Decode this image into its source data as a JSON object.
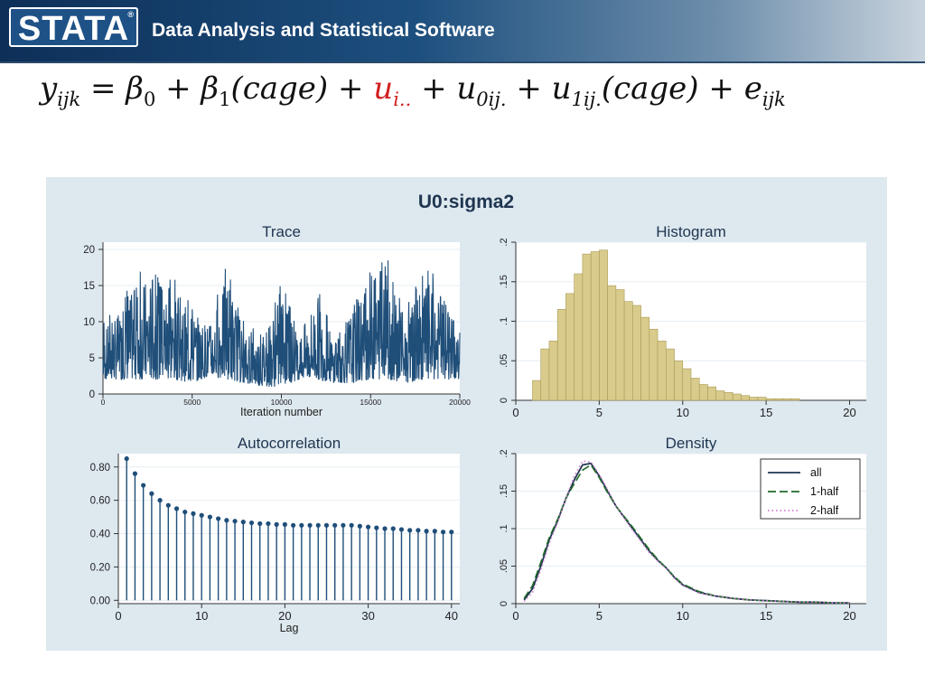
{
  "header": {
    "logo_text": "STATA",
    "logo_mark": "®",
    "tagline": "Data Analysis and Statistical Software"
  },
  "equation": {
    "lhs": "y",
    "lhs_sub": "ijk",
    "equals": " = ",
    "b0": "β",
    "b0_sub": "0",
    "plus1": " + ",
    "b1": "β",
    "b1_sub": "1",
    "cage1": "(cage)",
    "plus2": " + ",
    "u_red": "u",
    "u_red_sub": "i..",
    "plus3": " + ",
    "u0": "u",
    "u0_sub": "0ij.",
    "plus4": " + ",
    "u1": "u",
    "u1_sub": "1ij.",
    "cage2": "(cage)",
    "plus5": " + ",
    "e": "e",
    "e_sub": "ijk"
  },
  "figure_title": "U0:sigma2",
  "colors": {
    "navy": "#1f4e79",
    "olive_fill": "#d9cb8c",
    "olive_edge": "#a89a55",
    "panel_bg": "#dde8ef",
    "green": "#1f6b2a",
    "pink": "#d17bd3"
  },
  "chart_data": [
    {
      "type": "line",
      "title": "Trace",
      "xlabel": "Iteration number",
      "ylabel": "",
      "xlim": [
        0,
        20000
      ],
      "ylim": [
        0,
        21
      ],
      "xticks": [
        "0",
        "5000",
        "10000",
        "15000",
        "20000"
      ],
      "yticks": [
        "0",
        "5",
        "10",
        "15",
        "20"
      ],
      "series": [
        {
          "n_points": 20000,
          "mean_level": 5,
          "min_level": 1,
          "max_level": 20,
          "envelope_x": [
            0,
            1000,
            2000,
            3000,
            4000,
            5000,
            6000,
            7000,
            8000,
            9000,
            10000,
            11000,
            12000,
            13000,
            14000,
            15000,
            16000,
            17000,
            18000,
            19000,
            20000
          ],
          "envelope_low": [
            2,
            2,
            2,
            2,
            2,
            1.5,
            2.5,
            2,
            1.5,
            1,
            1,
            2,
            2,
            1.5,
            1.5,
            2,
            2,
            1.5,
            2,
            2,
            2
          ],
          "envelope_high": [
            10,
            13,
            18,
            19,
            16,
            13,
            11,
            19,
            9,
            10,
            16,
            9,
            16,
            8,
            14,
            20,
            19,
            12,
            18,
            16,
            10
          ]
        }
      ]
    },
    {
      "type": "bar",
      "title": "Histogram",
      "xlabel": "",
      "ylabel": "",
      "xlim": [
        0,
        21
      ],
      "ylim": [
        0,
        0.2
      ],
      "xticks": [
        "0",
        "5",
        "10",
        "15",
        "20"
      ],
      "yticks": [
        "0",
        ".05",
        ".1",
        ".15",
        ".2"
      ],
      "bin_width": 0.5,
      "bin_starts": [
        1.0,
        1.5,
        2.0,
        2.5,
        3.0,
        3.5,
        4.0,
        4.5,
        5.0,
        5.5,
        6.0,
        6.5,
        7.0,
        7.5,
        8.0,
        8.5,
        9.0,
        9.5,
        10.0,
        10.5,
        11.0,
        11.5,
        12.0,
        12.5,
        13.0,
        13.5,
        14.0,
        14.5,
        15.0,
        15.5,
        16.0,
        16.5
      ],
      "values": [
        0.025,
        0.065,
        0.075,
        0.115,
        0.135,
        0.16,
        0.185,
        0.188,
        0.19,
        0.145,
        0.14,
        0.125,
        0.12,
        0.105,
        0.09,
        0.075,
        0.065,
        0.05,
        0.04,
        0.028,
        0.02,
        0.017,
        0.012,
        0.01,
        0.008,
        0.006,
        0.004,
        0.004,
        0.002,
        0.002,
        0.002,
        0.002
      ]
    },
    {
      "type": "bar",
      "subtype": "stem",
      "title": "Autocorrelation",
      "xlabel": "Lag",
      "ylabel": "",
      "xlim": [
        0,
        41
      ],
      "ylim": [
        -0.02,
        0.88
      ],
      "xticks": [
        "0",
        "10",
        "20",
        "30",
        "40"
      ],
      "yticks": [
        "0.00",
        "0.20",
        "0.40",
        "0.60",
        "0.80"
      ],
      "x": [
        1,
        2,
        3,
        4,
        5,
        6,
        7,
        8,
        9,
        10,
        11,
        12,
        13,
        14,
        15,
        16,
        17,
        18,
        19,
        20,
        21,
        22,
        23,
        24,
        25,
        26,
        27,
        28,
        29,
        30,
        31,
        32,
        33,
        34,
        35,
        36,
        37,
        38,
        39,
        40
      ],
      "values": [
        0.85,
        0.76,
        0.69,
        0.64,
        0.6,
        0.57,
        0.55,
        0.53,
        0.52,
        0.51,
        0.5,
        0.49,
        0.48,
        0.475,
        0.47,
        0.465,
        0.46,
        0.46,
        0.455,
        0.455,
        0.45,
        0.45,
        0.45,
        0.45,
        0.45,
        0.45,
        0.45,
        0.45,
        0.445,
        0.44,
        0.435,
        0.43,
        0.43,
        0.425,
        0.42,
        0.42,
        0.415,
        0.415,
        0.41,
        0.41
      ]
    },
    {
      "type": "line",
      "title": "Density",
      "xlabel": "",
      "ylabel": "",
      "xlim": [
        0,
        21
      ],
      "ylim": [
        0,
        0.2
      ],
      "xticks": [
        "0",
        "5",
        "10",
        "15",
        "20"
      ],
      "yticks": [
        "0",
        ".05",
        ".1",
        ".15",
        ".2"
      ],
      "legend": "top-right",
      "series": [
        {
          "name": "all",
          "style": "solid",
          "color": "#1f3550",
          "x": [
            0.5,
            1,
            1.5,
            2,
            2.5,
            3,
            3.5,
            4,
            4.5,
            5,
            5.5,
            6,
            6.5,
            7,
            7.5,
            8,
            8.5,
            9,
            9.5,
            10,
            11,
            12,
            13,
            14,
            15,
            16,
            17,
            18,
            19,
            20
          ],
          "y": [
            0.005,
            0.02,
            0.05,
            0.085,
            0.11,
            0.14,
            0.165,
            0.185,
            0.187,
            0.17,
            0.15,
            0.13,
            0.115,
            0.1,
            0.085,
            0.07,
            0.058,
            0.048,
            0.035,
            0.025,
            0.015,
            0.01,
            0.007,
            0.005,
            0.004,
            0.003,
            0.002,
            0.002,
            0.001,
            0.001
          ]
        },
        {
          "name": "1-half",
          "style": "dashed",
          "color": "#1f6b2a",
          "x": [
            0.5,
            1,
            1.5,
            2,
            2.5,
            3,
            3.5,
            4,
            4.5,
            5,
            5.5,
            6,
            6.5,
            7,
            7.5,
            8,
            8.5,
            9,
            9.5,
            10,
            11,
            12,
            13,
            14,
            15,
            16,
            17,
            18,
            19,
            20
          ],
          "y": [
            0.007,
            0.024,
            0.055,
            0.088,
            0.112,
            0.14,
            0.16,
            0.178,
            0.185,
            0.168,
            0.148,
            0.13,
            0.116,
            0.102,
            0.087,
            0.072,
            0.059,
            0.048,
            0.036,
            0.026,
            0.016,
            0.01,
            0.007,
            0.005,
            0.004,
            0.003,
            0.002,
            0.002,
            0.001,
            0.001
          ]
        },
        {
          "name": "2-half",
          "style": "dotted",
          "color": "#d17bd3",
          "x": [
            0.5,
            1,
            1.5,
            2,
            2.5,
            3,
            3.5,
            4,
            4.5,
            5,
            5.5,
            6,
            6.5,
            7,
            7.5,
            8,
            8.5,
            9,
            9.5,
            10,
            11,
            12,
            13,
            14,
            15,
            16,
            17,
            18,
            19,
            20
          ],
          "y": [
            0.003,
            0.015,
            0.045,
            0.08,
            0.108,
            0.14,
            0.17,
            0.19,
            0.189,
            0.172,
            0.152,
            0.13,
            0.114,
            0.098,
            0.083,
            0.068,
            0.057,
            0.047,
            0.034,
            0.024,
            0.014,
            0.01,
            0.007,
            0.005,
            0.004,
            0.003,
            0.002,
            0.002,
            0.001,
            0.001
          ]
        }
      ]
    }
  ]
}
